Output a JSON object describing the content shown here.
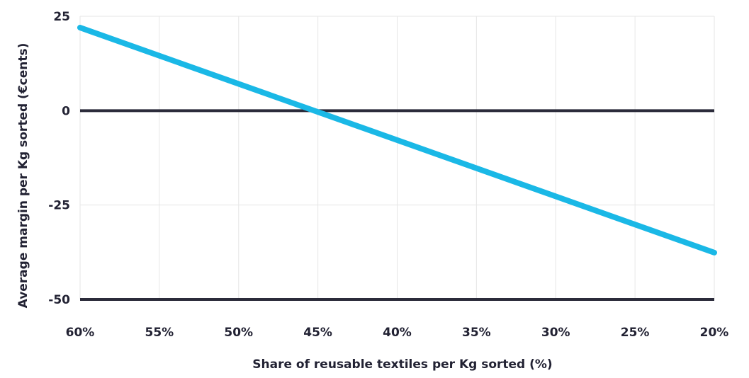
{
  "chart_data": {
    "type": "line",
    "xlabel": "Share of reusable textiles per Kg sorted (%)",
    "ylabel": "Average margin per Kg sorted (€cents)",
    "x_ticks": [
      "60%",
      "55%",
      "50%",
      "45%",
      "40%",
      "35%",
      "30%",
      "25%",
      "20%"
    ],
    "y_ticks": [
      "25",
      "0",
      "-25",
      "-50"
    ],
    "x_values": [
      60,
      20
    ],
    "series": [
      {
        "values": [
          22,
          -37.6
        ],
        "color": "#1ab8e6"
      }
    ],
    "xlim": [
      60,
      20
    ],
    "ylim": [
      -50,
      25
    ],
    "grid": true,
    "zero_line_color": "#2b2b3a",
    "grid_color": "#e6e6e6"
  }
}
